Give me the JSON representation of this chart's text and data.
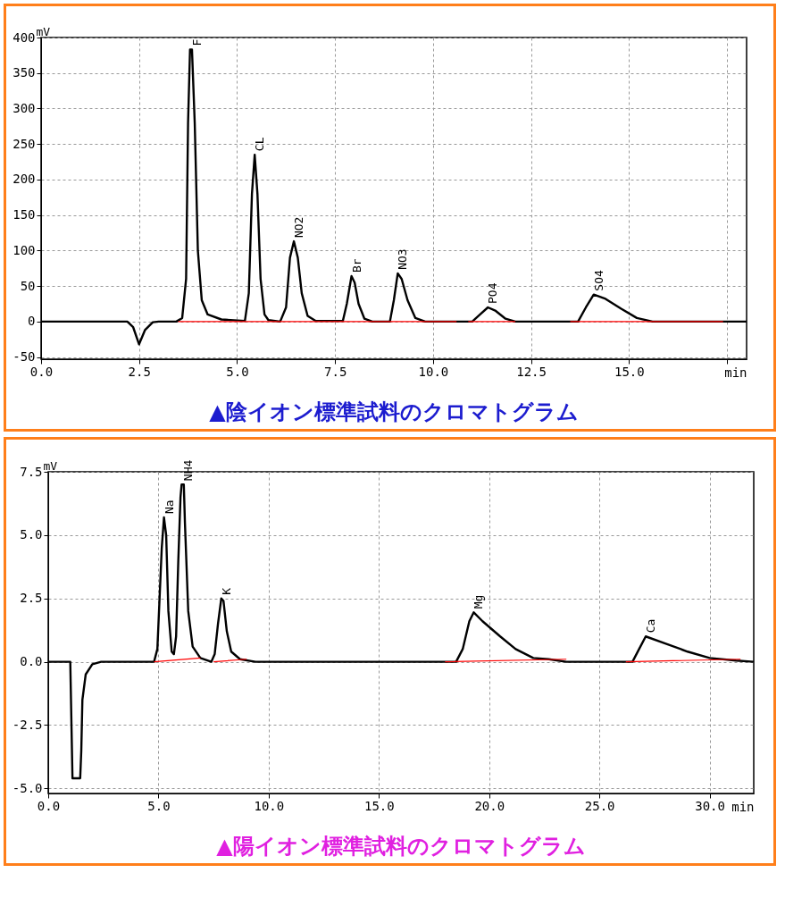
{
  "chart_data": [
    {
      "type": "line",
      "title": "▲陰イオン標準試料のクロマトグラム",
      "xlabel": "min",
      "ylabel": "mV",
      "xlim": [
        0,
        18
      ],
      "ylim": [
        -53,
        400
      ],
      "xticks": [
        {
          "value": 0,
          "label": "0.0"
        },
        {
          "value": 2.5,
          "label": "2.5"
        },
        {
          "value": 5,
          "label": "5.0"
        },
        {
          "value": 7.5,
          "label": "7.5"
        },
        {
          "value": 10,
          "label": "10.0"
        },
        {
          "value": 12.5,
          "label": "12.5"
        },
        {
          "value": 15,
          "label": "15.0"
        },
        {
          "value": 17.5,
          "label": null
        }
      ],
      "yticks": [
        -50,
        0,
        50,
        100,
        150,
        200,
        250,
        300,
        350,
        400
      ],
      "grid": true,
      "line_style": "solid",
      "series": [
        {
          "color": "#000000",
          "x": [
            0,
            2.2,
            2.35,
            2.5,
            2.65,
            2.85,
            3.0,
            3.45,
            3.6,
            3.7,
            3.75,
            3.8,
            3.85,
            3.92,
            4.0,
            4.1,
            4.25,
            4.6,
            5.2,
            5.3,
            5.38,
            5.45,
            5.52,
            5.6,
            5.7,
            5.8,
            6.1,
            6.25,
            6.35,
            6.45,
            6.55,
            6.65,
            6.8,
            7.0,
            7.7,
            7.8,
            7.92,
            8.0,
            8.1,
            8.25,
            8.45,
            8.9,
            9.0,
            9.1,
            9.2,
            9.35,
            9.55,
            9.8,
            11.0,
            11.2,
            11.4,
            11.6,
            11.85,
            12.1,
            13.7,
            13.9,
            14.1,
            14.4,
            14.8,
            15.2,
            15.6,
            18
          ],
          "values": [
            0,
            0,
            -8,
            -32,
            -12,
            -1,
            0,
            0,
            5,
            60,
            280,
            383,
            383,
            280,
            100,
            30,
            10,
            3,
            1,
            40,
            180,
            235,
            180,
            60,
            10,
            2,
            0,
            20,
            90,
            113,
            90,
            40,
            8,
            1,
            1,
            25,
            64,
            55,
            25,
            4,
            0,
            0,
            30,
            68,
            60,
            30,
            5,
            0,
            0,
            10,
            20,
            15,
            4,
            0,
            0,
            20,
            38,
            32,
            18,
            5,
            0,
            0
          ]
        },
        {
          "color": "#ff0000",
          "x": [
            3.5,
            10.6,
            10.75,
            10.9,
            12.1,
            12.8,
            13.5,
            17.4
          ],
          "values": [
            0,
            0,
            null,
            0,
            0,
            null,
            0,
            0
          ]
        }
      ],
      "annotations": [
        {
          "text": "F",
          "x": 3.85,
          "y": 383
        },
        {
          "text": "CL",
          "x": 5.45,
          "y": 235
        },
        {
          "text": "NO2",
          "x": 6.45,
          "y": 113
        },
        {
          "text": "Br",
          "x": 7.92,
          "y": 64
        },
        {
          "text": "NO3",
          "x": 9.1,
          "y": 68
        },
        {
          "text": "PO4",
          "x": 11.4,
          "y": 20
        },
        {
          "text": "SO4",
          "x": 14.1,
          "y": 38
        }
      ]
    },
    {
      "type": "line",
      "title": "▲陽イオン標準試料のクロマトグラム",
      "xlabel": "min",
      "ylabel": "mV",
      "xlim": [
        0,
        32
      ],
      "ylim": [
        -5.2,
        7.5
      ],
      "xticks": [
        {
          "value": 0,
          "label": "0.0"
        },
        {
          "value": 5,
          "label": "5.0"
        },
        {
          "value": 10,
          "label": "10.0"
        },
        {
          "value": 15,
          "label": "15.0"
        },
        {
          "value": 20,
          "label": "20.0"
        },
        {
          "value": 25,
          "label": "25.0"
        },
        {
          "value": 30,
          "label": "30.0"
        }
      ],
      "yticks": [
        {
          "value": -5,
          "label": "-5.0"
        },
        -2.5,
        {
          "value": 0,
          "label": "0.0"
        },
        2.5,
        {
          "value": 5,
          "label": "5.0"
        },
        7.5
      ],
      "grid": true,
      "line_style": "solid",
      "series": [
        {
          "color": "#000000",
          "x": [
            0,
            1.0,
            1.05,
            1.1,
            1.45,
            1.5,
            1.55,
            1.7,
            2.0,
            2.4,
            4.8,
            4.95,
            5.05,
            5.15,
            5.25,
            5.35,
            5.45,
            5.6,
            5.7,
            5.8,
            5.9,
            6.0,
            6.05,
            6.15,
            6.2,
            6.35,
            6.55,
            6.9,
            7.4,
            7.55,
            7.7,
            7.85,
            7.95,
            8.1,
            8.3,
            8.7,
            9.4,
            18.5,
            18.8,
            19.1,
            19.3,
            19.7,
            20.5,
            21.2,
            22.0,
            22.7,
            23.5,
            26.5,
            26.8,
            27.1,
            27.9,
            29.0,
            30.0,
            31.2,
            32
          ],
          "values": [
            0,
            0,
            -2.3,
            -4.6,
            -4.6,
            -3.5,
            -1.5,
            -0.5,
            -0.1,
            0,
            0,
            0.5,
            2.5,
            4.5,
            5.7,
            5.0,
            2.0,
            0.4,
            0.3,
            1.0,
            4.0,
            6.5,
            7.0,
            7.0,
            5.5,
            2.0,
            0.6,
            0.15,
            0,
            0.3,
            1.5,
            2.5,
            2.4,
            1.2,
            0.4,
            0.1,
            0,
            0,
            0.5,
            1.6,
            1.95,
            1.6,
            1.0,
            0.5,
            0.15,
            0.1,
            0,
            0,
            0.5,
            1.0,
            0.75,
            0.4,
            0.15,
            0.05,
            0
          ]
        },
        {
          "color": "#ff0000",
          "x": [
            4.8,
            6.9,
            7.2,
            7.5,
            9.0,
            13,
            18.0,
            23.5,
            25,
            26.2,
            31.4
          ],
          "values": [
            0,
            0.15,
            null,
            0,
            0.1,
            null,
            0,
            0.1,
            null,
            0,
            0.1
          ]
        }
      ],
      "annotations": [
        {
          "text": "Na",
          "x": 5.25,
          "y": 5.7
        },
        {
          "text": "NH4",
          "x": 6.1,
          "y": 7.0
        },
        {
          "text": "K",
          "x": 7.85,
          "y": 2.5
        },
        {
          "text": "Mg",
          "x": 19.3,
          "y": 1.95
        },
        {
          "text": "Ca",
          "x": 27.1,
          "y": 1.0
        }
      ]
    }
  ]
}
